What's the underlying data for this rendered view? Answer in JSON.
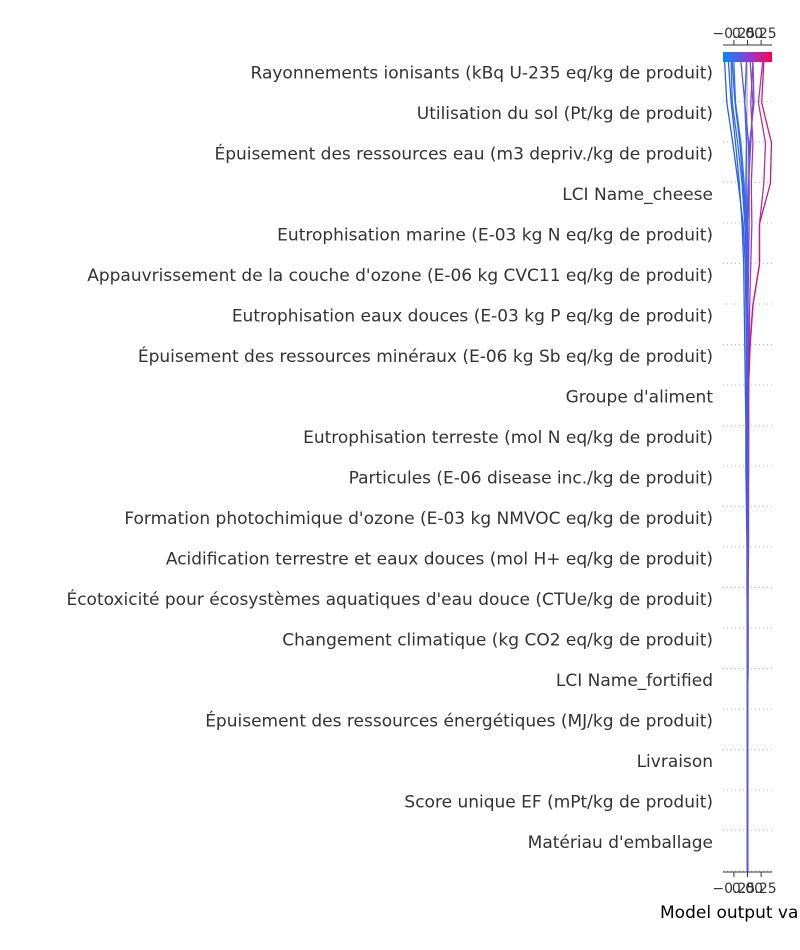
{
  "chart_data": {
    "type": "line",
    "subtype": "shap-decision-plot",
    "xlabel": "Model output value",
    "x_tick_labels_top": [
      "−0.25",
      "0.00",
      "0.25"
    ],
    "x_tick_labels_bottom": [
      "−0.25",
      "0.00",
      "0.25"
    ],
    "x_ticks": [
      -0.25,
      0.0,
      0.25
    ],
    "xlim": [
      -0.45,
      0.45
    ],
    "base_value": 0.0,
    "colorbar": {
      "low_color": "#008bfb",
      "high_color": "#ff0052"
    },
    "features": [
      "Rayonnements ionisants (kBq U-235 eq/kg de produit)",
      "Utilisation du sol (Pt/kg de produit)",
      "Épuisement des ressources eau (m3 depriv./kg de produit)",
      "LCI Name_cheese",
      "Eutrophisation marine (E-03 kg N eq/kg de produit)",
      "Appauvrissement de la couche d'ozone (E-06 kg CVC11 eq/kg de produit)",
      "Eutrophisation eaux douces (E-03 kg P eq/kg de produit)",
      "Épuisement des ressources minéraux (E-06 kg Sb eq/kg de produit)",
      "Groupe d'aliment",
      "Eutrophisation terreste (mol N eq/kg de produit)",
      "Particules (E-06 disease inc./kg de produit)",
      "Formation photochimique d'ozone (E-03 kg NMVOC eq/kg de produit)",
      "Acidification terrestre et eaux douces (mol H+ eq/kg de produit)",
      "Écotoxicité pour écosystèmes aquatiques d'eau douce (CTUe/kg de produit)",
      "Changement climatique (kg CO2 eq/kg de produit)",
      "LCI Name_fortified",
      "Épuisement des ressources énergétiques (MJ/kg de produit)",
      "Livraison",
      "Score unique EF (mPt/kg de produit)",
      "Matériau d'emballage"
    ],
    "series": [
      {
        "color": "#2563eb",
        "values": [
          0.0,
          0.0,
          0.0,
          0.0,
          0.0,
          0.0,
          0.0,
          0.0,
          0.0,
          0.0,
          -0.01,
          -0.01,
          -0.02,
          -0.02,
          -0.03,
          -0.04,
          -0.08,
          -0.17,
          -0.27,
          -0.38,
          -0.42
        ]
      },
      {
        "color": "#3b5bdb",
        "values": [
          0.0,
          0.0,
          0.0,
          0.0,
          0.0,
          0.0,
          0.0,
          -0.01,
          -0.01,
          -0.02,
          -0.03,
          -0.03,
          -0.04,
          -0.05,
          -0.06,
          -0.07,
          -0.1,
          -0.15,
          -0.22,
          -0.3,
          -0.35
        ]
      },
      {
        "color": "#2b6cf0",
        "values": [
          0.0,
          0.0,
          0.0,
          0.0,
          0.0,
          0.01,
          0.01,
          0.0,
          0.0,
          0.0,
          -0.01,
          0.0,
          -0.01,
          -0.01,
          -0.02,
          -0.02,
          -0.05,
          -0.1,
          -0.18,
          -0.28,
          -0.3
        ]
      },
      {
        "color": "#4c6ef5",
        "values": [
          0.0,
          0.0,
          0.0,
          0.0,
          0.0,
          0.0,
          0.01,
          0.01,
          0.01,
          0.01,
          0.0,
          0.01,
          0.0,
          0.0,
          0.0,
          0.0,
          -0.02,
          -0.06,
          -0.12,
          -0.22,
          -0.25
        ]
      },
      {
        "color": "#1e6ee8",
        "values": [
          0.0,
          0.0,
          0.0,
          0.0,
          0.0,
          0.0,
          0.0,
          0.0,
          0.01,
          0.01,
          0.01,
          0.0,
          0.0,
          0.01,
          0.0,
          -0.01,
          -0.03,
          -0.08,
          -0.14,
          -0.23,
          -0.28
        ]
      },
      {
        "color": "#5a55e0",
        "values": [
          0.0,
          0.0,
          0.0,
          0.0,
          0.0,
          0.01,
          0.01,
          0.01,
          0.02,
          0.02,
          0.02,
          0.02,
          0.02,
          0.02,
          0.01,
          0.02,
          0.03,
          0.03,
          0.02,
          -0.05,
          -0.12
        ]
      },
      {
        "color": "#6a4fd6",
        "values": [
          0.0,
          0.0,
          0.0,
          0.0,
          0.0,
          0.0,
          0.0,
          0.01,
          0.01,
          0.01,
          0.02,
          0.02,
          0.01,
          0.01,
          0.0,
          0.0,
          -0.01,
          0.02,
          0.06,
          0.1,
          0.05
        ]
      },
      {
        "color": "#a237b8",
        "values": [
          0.0,
          0.0,
          0.0,
          0.0,
          0.0,
          0.0,
          0.0,
          0.0,
          0.01,
          0.01,
          0.01,
          0.02,
          0.02,
          0.03,
          0.04,
          0.06,
          0.08,
          0.07,
          0.1,
          0.06,
          0.1
        ]
      },
      {
        "color": "#b5309f",
        "values": [
          0.0,
          0.0,
          0.0,
          0.0,
          0.0,
          0.0,
          0.0,
          0.0,
          0.0,
          0.0,
          0.01,
          0.01,
          0.02,
          0.05,
          0.1,
          0.22,
          0.22,
          0.3,
          0.33,
          0.2,
          0.28
        ]
      },
      {
        "color": "#c01c8a",
        "values": [
          0.0,
          0.0,
          0.0,
          0.0,
          0.0,
          0.0,
          0.0,
          0.0,
          0.0,
          0.0,
          0.0,
          0.01,
          0.02,
          0.04,
          0.1,
          0.22,
          0.22,
          0.42,
          0.44,
          0.26,
          0.3
        ]
      },
      {
        "color": "#7b4bd0",
        "values": [
          0.0,
          0.0,
          0.0,
          0.0,
          0.0,
          0.0,
          0.0,
          0.0,
          0.0,
          0.0,
          0.0,
          0.0,
          0.0,
          0.0,
          0.0,
          0.01,
          0.0,
          0.02,
          0.04,
          0.12,
          0.1
        ]
      },
      {
        "color": "#3f62e6",
        "values": [
          0.0,
          0.0,
          0.0,
          0.0,
          0.0,
          0.0,
          0.0,
          0.0,
          0.0,
          0.0,
          0.0,
          0.0,
          0.0,
          0.0,
          -0.01,
          -0.01,
          -0.02,
          -0.03,
          -0.02,
          -0.05,
          -0.02
        ]
      }
    ]
  }
}
